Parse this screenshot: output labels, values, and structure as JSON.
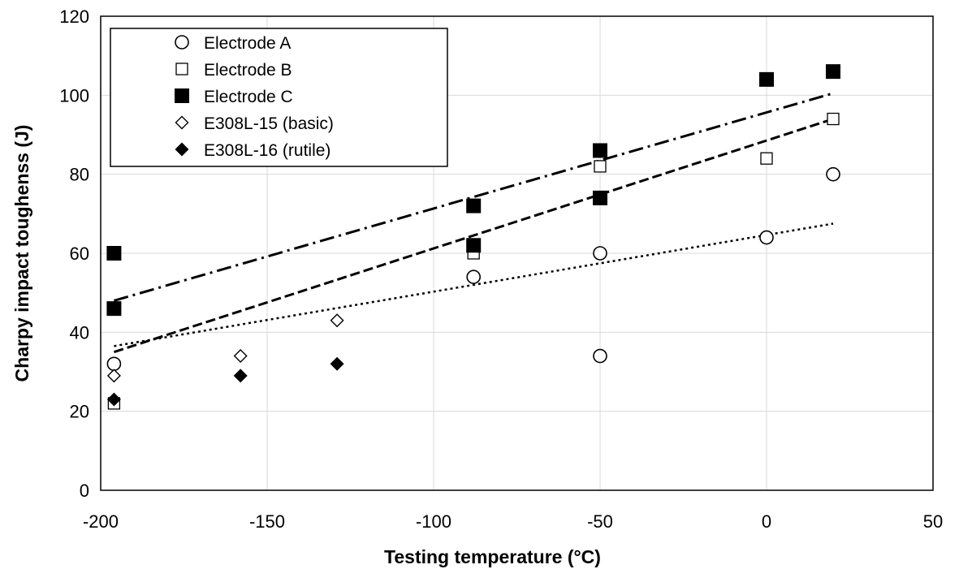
{
  "chart_data": {
    "type": "scatter",
    "title": "",
    "xlabel": "Testing temperature (°C)",
    "ylabel": "Charpy impact toughenss (J)",
    "xlim": [
      -200,
      50
    ],
    "ylim": [
      0,
      120
    ],
    "xticks": [
      -200,
      -150,
      -100,
      -50,
      0,
      50
    ],
    "yticks": [
      0,
      20,
      40,
      60,
      80,
      100,
      120
    ],
    "grid": true,
    "legend_position": "top-left",
    "series": [
      {
        "name": "Electrode A",
        "marker": "circle-open",
        "color": "#000000",
        "points": [
          [
            -196,
            32
          ],
          [
            -88,
            54
          ],
          [
            -50,
            60
          ],
          [
            -50,
            34
          ],
          [
            0,
            64
          ],
          [
            20,
            80
          ]
        ]
      },
      {
        "name": "Electrode B",
        "marker": "square-open",
        "color": "#000000",
        "points": [
          [
            -196,
            22
          ],
          [
            -88,
            60
          ],
          [
            -50,
            82
          ],
          [
            0,
            84
          ],
          [
            20,
            94
          ]
        ]
      },
      {
        "name": "Electrode C",
        "marker": "square-filled",
        "color": "#000000",
        "points": [
          [
            -196,
            60
          ],
          [
            -196,
            46
          ],
          [
            -88,
            72
          ],
          [
            -88,
            62
          ],
          [
            -50,
            86
          ],
          [
            -50,
            74
          ],
          [
            0,
            104
          ],
          [
            20,
            106
          ]
        ]
      },
      {
        "name": "E308L-15 (basic)",
        "marker": "diamond-open",
        "color": "#000000",
        "points": [
          [
            -196,
            29
          ],
          [
            -158,
            34
          ],
          [
            -129,
            43
          ]
        ]
      },
      {
        "name": "E308L-16 (rutile)",
        "marker": "diamond-filled",
        "color": "#000000",
        "points": [
          [
            -196,
            23
          ],
          [
            -158,
            29
          ],
          [
            -129,
            32
          ]
        ]
      }
    ],
    "trendlines": [
      {
        "series": "Electrode A",
        "style": "dotted",
        "x": [
          -196,
          20
        ],
        "y": [
          36.5,
          67.5
        ]
      },
      {
        "series": "Electrode B",
        "style": "dashed",
        "x": [
          -196,
          20
        ],
        "y": [
          35,
          94
        ]
      },
      {
        "series": "Electrode C",
        "style": "dash-dot",
        "x": [
          -196,
          20
        ],
        "y": [
          48,
          100.5
        ]
      }
    ]
  }
}
